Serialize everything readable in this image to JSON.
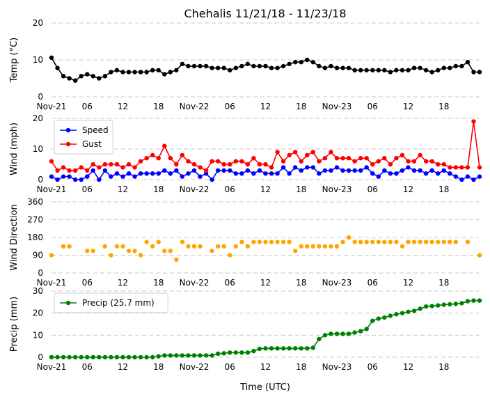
{
  "title": "Chehalis 11/21/18 - 11/23/18",
  "xlabel": "Time (UTC)",
  "x_tick_labels": [
    "Nov-21",
    "06",
    "12",
    "18",
    "Nov-22",
    "06",
    "12",
    "18",
    "Nov-23",
    "06",
    "12",
    "18"
  ],
  "chart_data": [
    {
      "type": "line",
      "ylabel": "Temp ($^\\circ$C)",
      "ylabel_display": "Temp (°C)",
      "ylim": [
        0,
        20
      ],
      "yticks": [
        0,
        10,
        20
      ],
      "grid": true,
      "x_unit": "hours since Nov-21 00:00 UTC",
      "series": [
        {
          "color": "#000000",
          "values": [
            10.6,
            7.8,
            5.6,
            5.0,
            4.4,
            5.6,
            6.1,
            5.6,
            5.0,
            5.6,
            6.7,
            7.2,
            6.7,
            6.7,
            6.7,
            6.7,
            6.7,
            7.2,
            7.2,
            6.1,
            6.7,
            7.2,
            8.9,
            8.3,
            8.3,
            8.3,
            8.3,
            7.8,
            7.8,
            7.8,
            7.2,
            7.8,
            8.3,
            8.9,
            8.3,
            8.3,
            8.3,
            7.8,
            7.8,
            8.3,
            8.9,
            9.4,
            9.4,
            10.0,
            9.4,
            8.3,
            7.8,
            8.3,
            7.8,
            7.8,
            7.8,
            7.2,
            7.2,
            7.2,
            7.2,
            7.2,
            7.2,
            6.7,
            7.2,
            7.2,
            7.2,
            7.8,
            7.8,
            7.2,
            6.7,
            7.2,
            7.8,
            7.8,
            8.3,
            8.3,
            9.4,
            6.7,
            6.7
          ]
        }
      ]
    },
    {
      "type": "line",
      "ylabel": "Wind (mph)",
      "ylim": [
        0,
        20
      ],
      "yticks": [
        0,
        10,
        20
      ],
      "grid": true,
      "legend": "top-left",
      "series": [
        {
          "name": "Speed",
          "color": "#0000ff",
          "values": [
            1,
            0,
            1,
            1,
            0,
            0,
            1,
            3,
            0,
            3,
            1,
            2,
            1,
            2,
            1,
            2,
            2,
            2,
            2,
            3,
            2,
            3,
            1,
            2,
            3,
            1,
            2,
            0,
            3,
            3,
            3,
            2,
            2,
            3,
            2,
            3,
            2,
            2,
            2,
            4,
            2,
            4,
            3,
            4,
            4,
            2,
            3,
            3,
            4,
            3,
            3,
            3,
            3,
            4,
            2,
            1,
            3,
            2,
            2,
            3,
            4,
            3,
            3,
            2,
            3,
            2,
            3,
            2,
            1,
            0,
            1,
            0,
            1
          ]
        },
        {
          "name": "Gust",
          "color": "#ff0000",
          "values": [
            6,
            3,
            4,
            3,
            3,
            4,
            3,
            5,
            4,
            5,
            5,
            5,
            4,
            5,
            4,
            6,
            7,
            8,
            7,
            11,
            7,
            5,
            8,
            6,
            5,
            4,
            3,
            6,
            6,
            5,
            5,
            6,
            6,
            5,
            7,
            5,
            5,
            4,
            9,
            6,
            8,
            9,
            6,
            8,
            9,
            6,
            7,
            9,
            7,
            7,
            7,
            6,
            7,
            7,
            5,
            6,
            7,
            5,
            7,
            8,
            6,
            6,
            8,
            6,
            6,
            5,
            5,
            4,
            4,
            4,
            4,
            19,
            4
          ]
        }
      ]
    },
    {
      "type": "scatter",
      "ylabel": "Wind Direction",
      "ylim": [
        0,
        360
      ],
      "yticks": [
        0,
        90,
        180,
        270,
        360
      ],
      "grid": true,
      "series": [
        {
          "color": "#ffa500",
          "values": [
            90,
            null,
            135,
            135,
            null,
            null,
            112,
            112,
            null,
            135,
            90,
            135,
            135,
            112,
            112,
            90,
            157,
            135,
            157,
            112,
            112,
            67,
            157,
            135,
            135,
            135,
            null,
            112,
            135,
            135,
            90,
            135,
            157,
            135,
            157,
            157,
            157,
            157,
            157,
            157,
            157,
            112,
            135,
            135,
            135,
            135,
            135,
            135,
            135,
            157,
            180,
            157,
            157,
            157,
            157,
            157,
            157,
            157,
            157,
            135,
            157,
            157,
            157,
            157,
            157,
            157,
            157,
            157,
            157,
            null,
            157,
            null,
            90
          ]
        }
      ]
    },
    {
      "type": "line",
      "ylabel": "Precip (mm)",
      "ylim": [
        0,
        30
      ],
      "yticks": [
        0,
        10,
        20,
        30
      ],
      "grid": true,
      "legend": "top-left",
      "series": [
        {
          "name": "Precip (25.7 mm)",
          "color": "#008000",
          "values": [
            0,
            0,
            0,
            0,
            0,
            0,
            0,
            0,
            0,
            0,
            0,
            0,
            0,
            0,
            0,
            0,
            0,
            0,
            0.4,
            0.8,
            0.8,
            0.8,
            0.8,
            0.8,
            0.8,
            0.8,
            0.8,
            0.8,
            1.6,
            1.8,
            2.1,
            2.1,
            2.1,
            2.1,
            2.8,
            3.8,
            4.0,
            4.0,
            4.0,
            4.0,
            4.0,
            4.0,
            4.0,
            4.0,
            4.3,
            8.2,
            10.0,
            10.6,
            10.6,
            10.6,
            10.6,
            11.2,
            11.8,
            12.8,
            16.5,
            17.5,
            18.0,
            18.8,
            19.5,
            20.0,
            20.6,
            21.0,
            22.0,
            23.0,
            23.2,
            23.5,
            23.8,
            24.0,
            24.2,
            24.5,
            25.4,
            25.7,
            25.7
          ]
        }
      ]
    }
  ]
}
